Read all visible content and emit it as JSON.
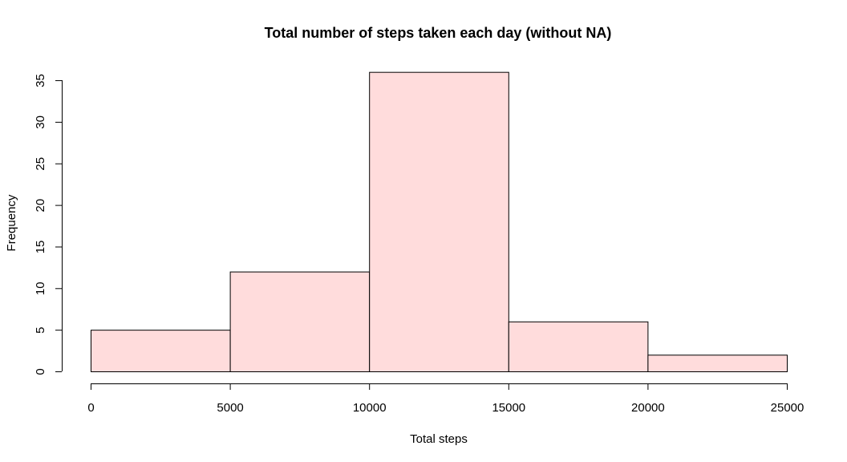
{
  "chart_data": {
    "type": "bar",
    "title": "Total number of steps taken each day (without NA)",
    "xlabel": "Total steps",
    "ylabel": "Frequency",
    "bin_edges": [
      0,
      5000,
      10000,
      15000,
      20000,
      25000
    ],
    "values": [
      5,
      12,
      36,
      6,
      2
    ],
    "xlim": [
      0,
      25000
    ],
    "ylim": [
      0,
      36
    ],
    "xticks": [
      0,
      5000,
      10000,
      15000,
      20000,
      25000
    ],
    "yticks": [
      0,
      5,
      10,
      15,
      20,
      25,
      30,
      35
    ],
    "bar_color": "#ffdcdc",
    "grid": false,
    "legend": "none"
  }
}
